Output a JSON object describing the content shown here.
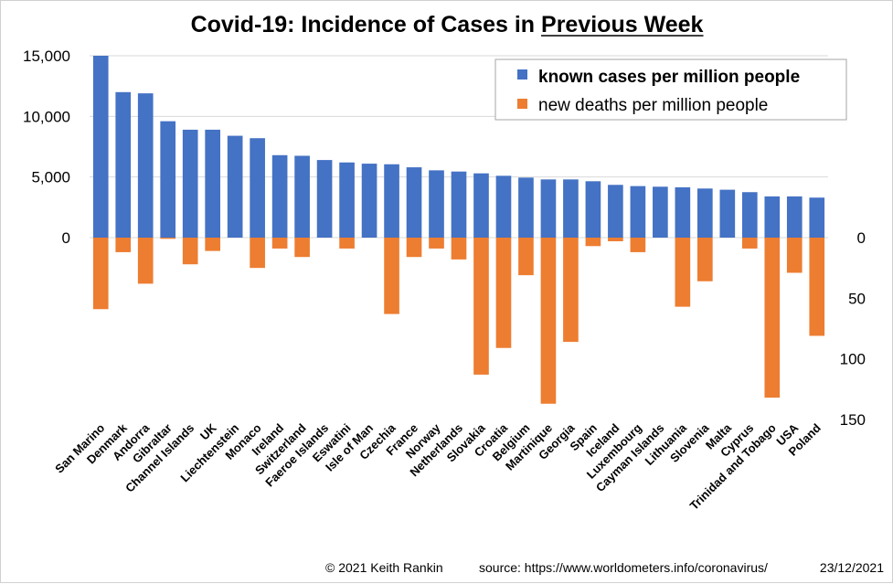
{
  "chart_data": {
    "type": "bar",
    "title_prefix": "Covid-19: Incidence of Cases in ",
    "title_emphasis": "Previous Week",
    "categories": [
      "San Marino",
      "Denmark",
      "Andorra",
      "Gibraltar",
      "Channel Islands",
      "UK",
      "Liechtenstein",
      "Monaco",
      "Ireland",
      "Switzerland",
      "Faeroe Islands",
      "Eswatini",
      "Isle of Man",
      "Czechia",
      "France",
      "Norway",
      "Netherlands",
      "Slovakia",
      "Croatia",
      "Belgium",
      "Martinique",
      "Georgia",
      "Spain",
      "Iceland",
      "Luxembourg",
      "Cayman Islands",
      "Lithuania",
      "Slovenia",
      "Malta",
      "Cyprus",
      "Trinidad and Tobago",
      "USA",
      "Poland"
    ],
    "series": [
      {
        "name": "known cases per million people",
        "axis": "left",
        "color": "#4472C4",
        "values": [
          15000,
          12000,
          11900,
          9600,
          8900,
          8900,
          8400,
          8200,
          6800,
          6750,
          6400,
          6200,
          6100,
          6050,
          5800,
          5550,
          5450,
          5300,
          5100,
          4950,
          4800,
          4800,
          4650,
          4350,
          4250,
          4200,
          4150,
          4050,
          3950,
          3750,
          3400,
          3400,
          3300
        ]
      },
      {
        "name": "new deaths per million people",
        "axis": "right",
        "color": "#ED7D31",
        "values": [
          59,
          12,
          38,
          1,
          22,
          11,
          0,
          25,
          9,
          16,
          0,
          9,
          0,
          63,
          16,
          9,
          18,
          113,
          91,
          31,
          137,
          86,
          7,
          3,
          12,
          0,
          57,
          36,
          0,
          9,
          132,
          29,
          81
        ]
      }
    ],
    "left_axis": {
      "min": 0,
      "max": 15000,
      "ticks": [
        "0",
        "5,000",
        "10,000",
        "15,000"
      ],
      "tick_values": [
        0,
        5000,
        10000,
        15000
      ]
    },
    "right_axis": {
      "min": 0,
      "max": 150,
      "ticks": [
        "0",
        "50",
        "100",
        "150"
      ],
      "tick_values": [
        0,
        50,
        100,
        150
      ],
      "inverted": true
    },
    "legend_position": "top-right",
    "grid": true
  },
  "footer": {
    "copyright": "© 2021  Keith  Rankin",
    "source": "source:  https://www.worldometers.info/coronavirus/",
    "date": "23/12/2021"
  }
}
